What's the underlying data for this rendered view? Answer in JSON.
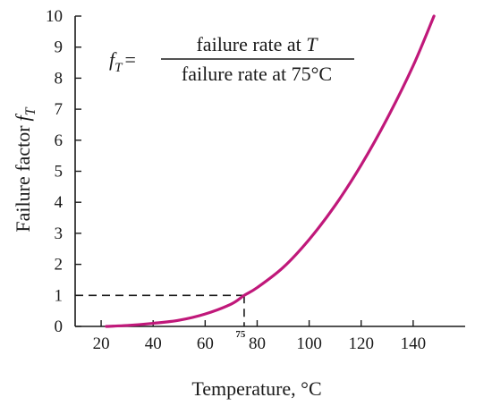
{
  "chart_data": {
    "type": "line",
    "title": "",
    "xlabel": "Temperature, °C",
    "ylabel_text": "Failure factor",
    "ylabel_symbol": "f",
    "ylabel_subscript": "T",
    "xlim": [
      10,
      160
    ],
    "ylim": [
      0,
      10
    ],
    "x_ticks": [
      20,
      40,
      60,
      80,
      100,
      120,
      140
    ],
    "y_ticks": [
      0,
      1,
      2,
      3,
      4,
      5,
      6,
      7,
      8,
      9,
      10
    ],
    "grid": false,
    "reference": {
      "x": 75,
      "y": 1,
      "label": "75"
    },
    "formula": {
      "lhs_symbol": "f",
      "lhs_subscript": "T",
      "equals": "=",
      "numerator": "failure rate at ",
      "numerator_var": "T",
      "denominator": "failure rate at 75°C"
    },
    "series": [
      {
        "color": "#c0187a",
        "x": [
          22,
          30,
          40,
          50,
          60,
          70,
          75,
          80,
          90,
          100,
          110,
          120,
          130,
          140,
          148
        ],
        "y": [
          0.0,
          0.03,
          0.1,
          0.2,
          0.4,
          0.72,
          1.0,
          1.25,
          1.9,
          2.8,
          3.9,
          5.2,
          6.7,
          8.4,
          10.0
        ]
      }
    ]
  }
}
